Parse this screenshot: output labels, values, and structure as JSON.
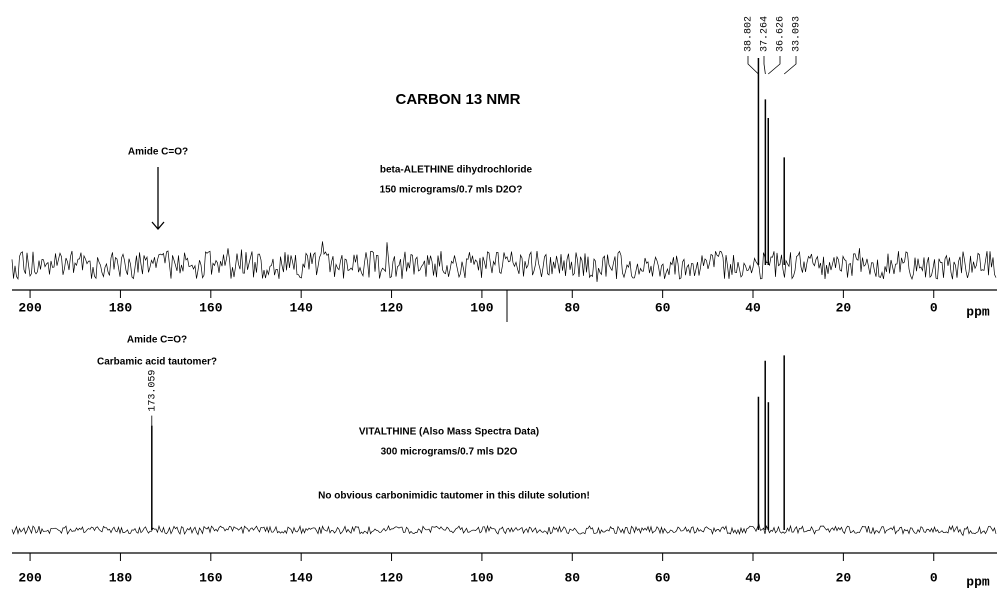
{
  "chart_data": [
    {
      "type": "stem",
      "title": "CARBON 13 NMR",
      "annotations": [
        "Amide C=O?",
        "beta-ALETHINE dihydrochloride",
        "150 micrograms/0.7 mls D2O?"
      ],
      "x": [
        38.802,
        37.264,
        36.626,
        33.093
      ],
      "values": [
        100,
        80,
        71,
        52
      ],
      "ylim": [
        0,
        100
      ],
      "xlim": [
        204,
        -14
      ],
      "xticks": [
        200,
        180,
        160,
        140,
        120,
        100,
        80,
        60,
        40,
        20,
        0
      ],
      "xlabel": "ppm",
      "color": "#000000"
    },
    {
      "type": "stem",
      "annotations": [
        "Amide C=O?",
        "Carbamic acid tautomer?",
        "VITALTHINE (Also Mass Spectra Data)",
        "300 micrograms/0.7 mls D2O",
        "No obvious carbonimidic tautomer in this dilute solution!"
      ],
      "x": [
        173.059,
        38.8,
        37.3,
        36.6,
        33.1
      ],
      "values": [
        58,
        74,
        94,
        71,
        97
      ],
      "ylim": [
        0,
        100
      ],
      "xlim": [
        204,
        -14
      ],
      "xticks": [
        200,
        180,
        160,
        140,
        120,
        100,
        80,
        60,
        40,
        20,
        0
      ],
      "xlabel": "ppm",
      "color": "#000000"
    }
  ]
}
